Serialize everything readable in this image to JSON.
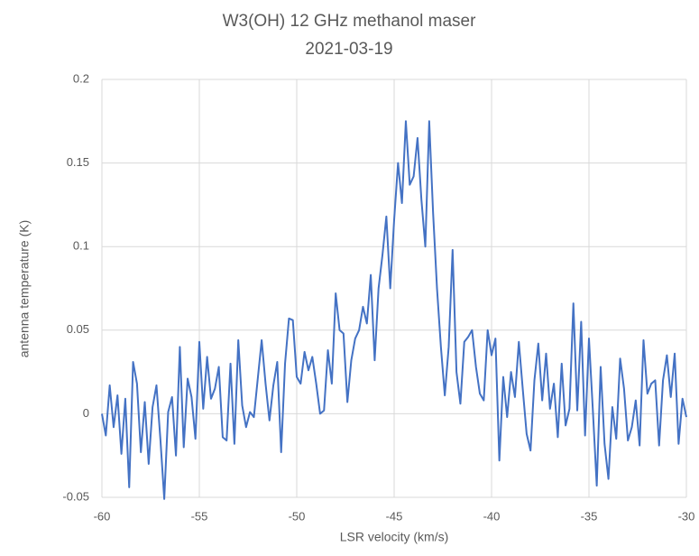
{
  "chart_data": {
    "type": "line",
    "title": "W3(OH) 12 GHz methanol maser",
    "subtitle": "2021-03-19",
    "xlabel": "LSR velocity (km/s)",
    "ylabel": "antenna temperature (K)",
    "x": [
      -60,
      -59.8,
      -59.6,
      -59.4,
      -59.2,
      -59,
      -58.8,
      -58.6,
      -58.4,
      -58.2,
      -58,
      -57.8,
      -57.6,
      -57.4,
      -57.2,
      -57,
      -56.8,
      -56.6,
      -56.4,
      -56.2,
      -56,
      -55.8,
      -55.6,
      -55.4,
      -55.2,
      -55,
      -54.8,
      -54.6,
      -54.4,
      -54.2,
      -54,
      -53.8,
      -53.6,
      -53.4,
      -53.2,
      -53,
      -52.8,
      -52.6,
      -52.4,
      -52.2,
      -52,
      -51.8,
      -51.6,
      -51.4,
      -51.2,
      -51,
      -50.8,
      -50.6,
      -50.4,
      -50.2,
      -50,
      -49.8,
      -49.6,
      -49.4,
      -49.2,
      -49,
      -48.8,
      -48.6,
      -48.4,
      -48.2,
      -48,
      -47.8,
      -47.6,
      -47.4,
      -47.2,
      -47,
      -46.8,
      -46.6,
      -46.4,
      -46.2,
      -46,
      -45.8,
      -45.6,
      -45.4,
      -45.2,
      -45,
      -44.8,
      -44.6,
      -44.4,
      -44.2,
      -44,
      -43.8,
      -43.6,
      -43.4,
      -43.2,
      -43,
      -42.8,
      -42.6,
      -42.4,
      -42.2,
      -42,
      -41.8,
      -41.6,
      -41.4,
      -41.2,
      -41,
      -40.8,
      -40.6,
      -40.4,
      -40.2,
      -40,
      -39.8,
      -39.6,
      -39.4,
      -39.2,
      -39,
      -38.8,
      -38.6,
      -38.4,
      -38.2,
      -38,
      -37.8,
      -37.6,
      -37.4,
      -37.2,
      -37,
      -36.8,
      -36.6,
      -36.4,
      -36.2,
      -36,
      -35.8,
      -35.6,
      -35.4,
      -35.2,
      -35,
      -34.8,
      -34.6,
      -34.4,
      -34.2,
      -34,
      -33.8,
      -33.6,
      -33.4,
      -33.2,
      -33,
      -32.8,
      -32.6,
      -32.4,
      -32.2,
      -32,
      -31.8,
      -31.6,
      -31.4,
      -31.2,
      -31,
      -30.8,
      -30.6,
      -30.4,
      -30.2,
      -30
    ],
    "series": [
      {
        "color": "#4472c4",
        "values": [
          0,
          -0.013,
          0.017,
          -0.008,
          0.011,
          -0.024,
          0.009,
          -0.044,
          0.031,
          0.018,
          -0.023,
          0.007,
          -0.03,
          0.004,
          0.017,
          -0.015,
          -0.051,
          0.001,
          0.01,
          -0.025,
          0.04,
          -0.02,
          0.021,
          0.01,
          -0.015,
          0.043,
          0.003,
          0.034,
          0.009,
          0.015,
          0.028,
          -0.014,
          -0.016,
          0.03,
          -0.018,
          0.044,
          0.005,
          -0.008,
          0.001,
          -0.002,
          0.021,
          0.044,
          0.018,
          -0.004,
          0.017,
          0.031,
          -0.023,
          0.03,
          0.057,
          0.056,
          0.022,
          0.018,
          0.037,
          0.026,
          0.034,
          0.018,
          0.0,
          0.002,
          0.038,
          0.018,
          0.072,
          0.05,
          0.048,
          0.007,
          0.032,
          0.045,
          0.05,
          0.064,
          0.054,
          0.083,
          0.032,
          0.075,
          0.095,
          0.118,
          0.075,
          0.116,
          0.15,
          0.126,
          0.175,
          0.137,
          0.142,
          0.165,
          0.128,
          0.1,
          0.175,
          0.12,
          0.075,
          0.04,
          0.011,
          0.04,
          0.098,
          0.025,
          0.006,
          0.043,
          0.046,
          0.05,
          0.028,
          0.012,
          0.008,
          0.05,
          0.035,
          0.045,
          -0.028,
          0.022,
          -0.002,
          0.025,
          0.01,
          0.043,
          0.015,
          -0.012,
          -0.022,
          0.02,
          0.042,
          0.008,
          0.036,
          0.003,
          0.018,
          -0.014,
          0.03,
          -0.007,
          0.003,
          0.066,
          0.002,
          0.055,
          -0.013,
          0.045,
          0.002,
          -0.043,
          0.028,
          -0.018,
          -0.039,
          0.004,
          -0.015,
          0.033,
          0.015,
          -0.016,
          -0.008,
          0.008,
          -0.019,
          0.044,
          0.012,
          0.018,
          0.02,
          -0.019,
          0.02,
          0.035,
          0.01,
          0.036,
          -0.018,
          0.009,
          -0.002
        ]
      }
    ],
    "xlim": [
      -60,
      -30
    ],
    "xticks": [
      -60,
      -55,
      -50,
      -45,
      -40,
      -35,
      -30
    ],
    "ylim": [
      -0.05,
      0.2
    ],
    "yticks": [
      -0.05,
      0,
      0.05,
      0.1,
      0.15,
      0.2
    ],
    "grid": true
  }
}
